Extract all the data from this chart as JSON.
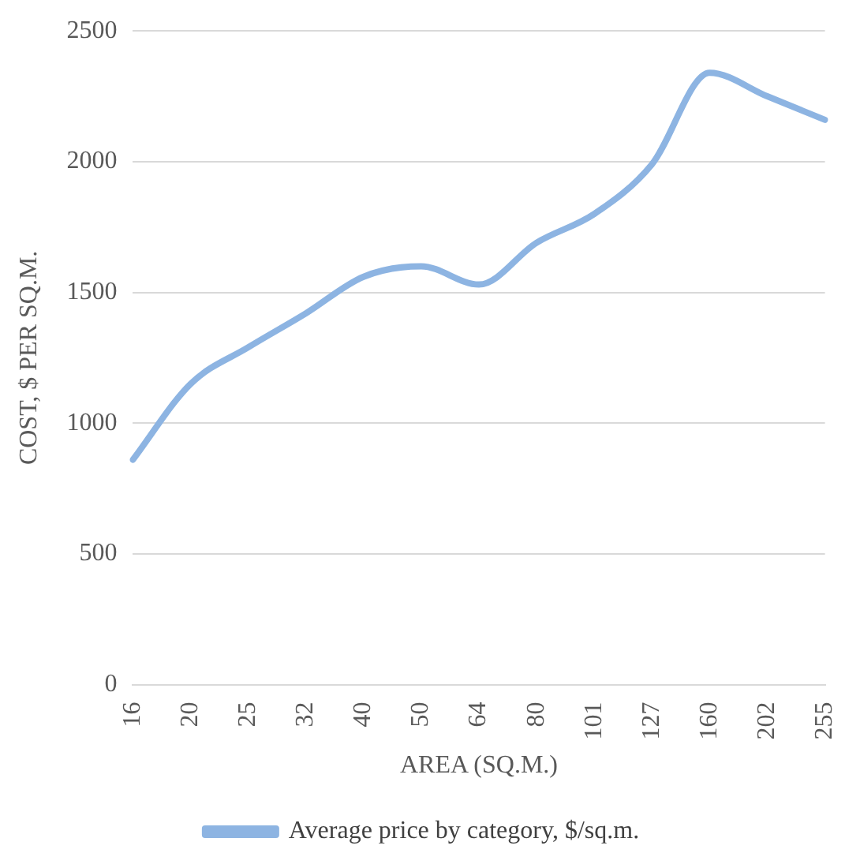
{
  "chart_data": {
    "type": "line",
    "xlabel": "AREA (SQ.M.)",
    "ylabel": "COST, $ PER SQ.M.",
    "categories": [
      "16",
      "20",
      "25",
      "32",
      "40",
      "50",
      "64",
      "80",
      "101",
      "127",
      "160",
      "202",
      "255"
    ],
    "series": [
      {
        "name": "Average price by category, $/sq.m.",
        "color": "#8db4e2",
        "values": [
          860,
          1150,
          1290,
          1420,
          1560,
          1600,
          1530,
          1690,
          1800,
          1990,
          2340,
          2250,
          2160
        ]
      }
    ],
    "ylim": [
      0,
      2500
    ],
    "yticks": [
      0,
      500,
      1000,
      1500,
      2000,
      2500
    ],
    "grid": "y",
    "legend": "bottom",
    "marker": "none",
    "line_style": "solid"
  }
}
